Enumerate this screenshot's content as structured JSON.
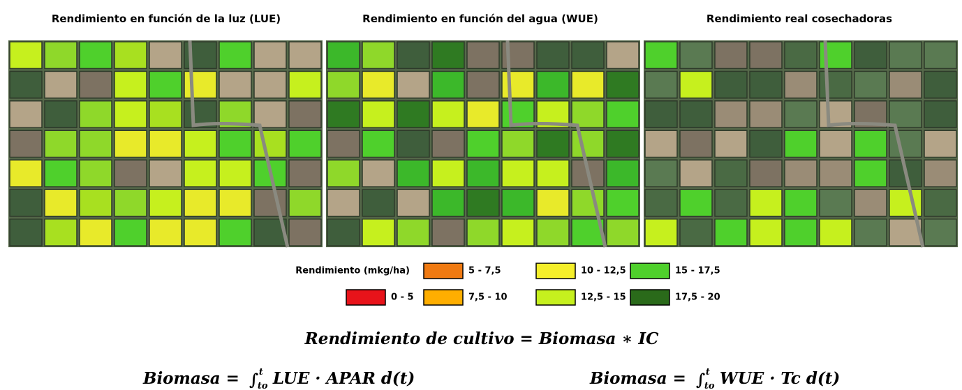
{
  "panels": [
    {
      "title": "Rendimiento en función de la luz (LUE)"
    },
    {
      "title": "Rendimiento en función del agua (WUE)"
    },
    {
      "title": "Rendimiento real cosechadoras"
    }
  ],
  "legend": {
    "title": "Rendimiento (mkg/ha)",
    "items": [
      {
        "label": "0 - 5",
        "color": "#e8131a"
      },
      {
        "label": "5 - 7,5",
        "color": "#f07a12"
      },
      {
        "label": "7,5 - 10",
        "color": "#ffae00"
      },
      {
        "label": "10 - 12,5",
        "color": "#f5ef2a"
      },
      {
        "label": "12,5 - 15",
        "color": "#c6f01e"
      },
      {
        "label": "15 - 17,5",
        "color": "#4fd02c"
      },
      {
        "label": "17,5 - 20",
        "color": "#2a6a1a"
      }
    ]
  },
  "formulas": {
    "main": "Rendimiento de cultivo = Biomasa ∗ IC",
    "left": {
      "lhs": "Biomasa =",
      "integral": "∫",
      "lower": "to",
      "upper": "t",
      "integrand": "LUE · APAR d(t)"
    },
    "right": {
      "lhs": "Biomasa =",
      "integral": "∫",
      "lower": "to",
      "upper": "t",
      "integrand": "WUE · Tc d(t)"
    }
  }
}
